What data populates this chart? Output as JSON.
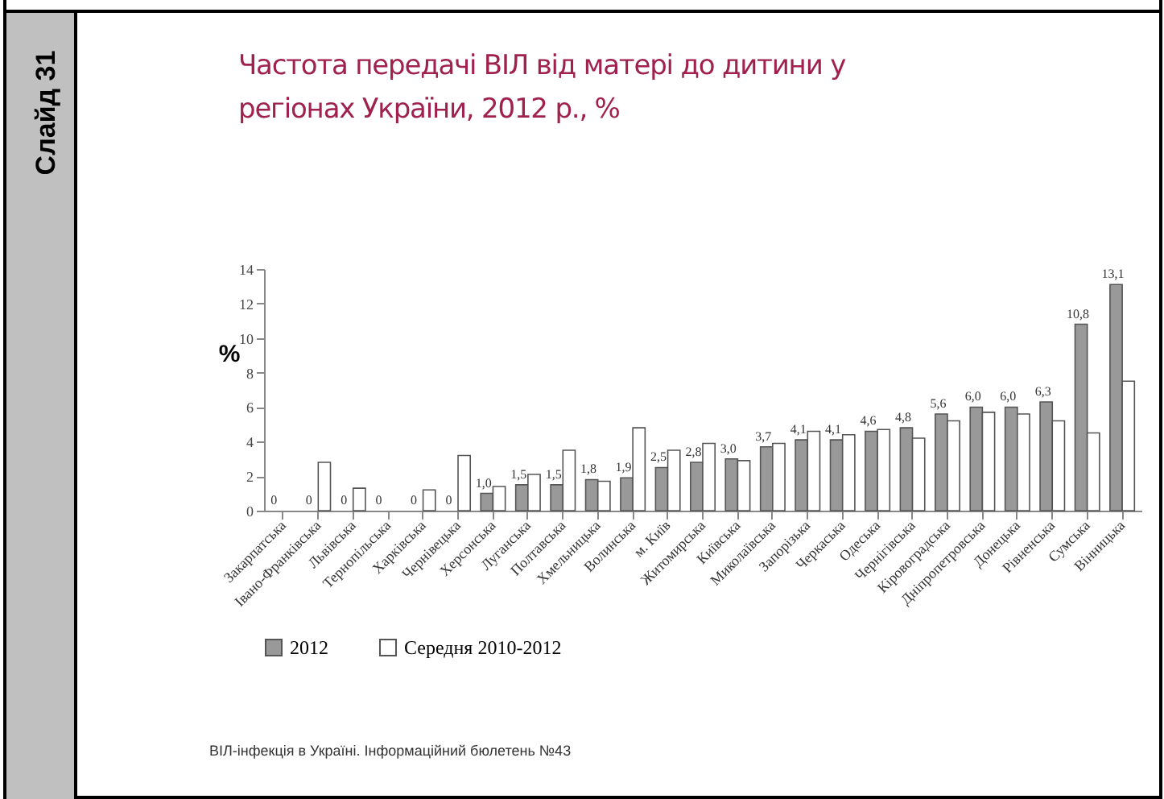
{
  "chart_data": {
    "type": "bar",
    "title": "Частота передачі ВІЛ від матері до дитини у регіонах України, 2012 р., %",
    "ylabel": "%",
    "categories": [
      "Закарпатська",
      "Івано-Франківська",
      "Львівська",
      "Тернопільська",
      "Харківська",
      "Чернівецька",
      "Херсонська",
      "Луганська",
      "Полтавська",
      "Хмельницька",
      "Волинська",
      "м. Київ",
      "Житомирська",
      "Київська",
      "Миколаївська",
      "Запорізька",
      "Черкаська",
      "Одеська",
      "Чернігівська",
      "Кіровоградська",
      "Дніпропетровська",
      "Донецька",
      "Рівненська",
      "Сумська",
      "Вінницька"
    ],
    "series": [
      {
        "name": "2012",
        "color": "#999999",
        "values": [
          0,
          0,
          0,
          0,
          0,
          0,
          1.0,
          1.5,
          1.5,
          1.8,
          1.9,
          2.5,
          2.8,
          3.0,
          3.7,
          4.1,
          4.1,
          4.6,
          4.8,
          5.6,
          6.0,
          6.0,
          6.3,
          10.8,
          13.1
        ],
        "value_labels": [
          "0",
          "0",
          "0",
          "0",
          "0",
          "0",
          "1,0",
          "1,5",
          "1,5",
          "1,8",
          "1,9",
          "2,5",
          "2,8",
          "3,0",
          "3,7",
          "4,1",
          "4,1",
          "4,6",
          "4,8",
          "5,6",
          "6,0",
          "6,0",
          "6,3",
          "10,8",
          "13,1"
        ]
      },
      {
        "name": "Середня 2010-2012",
        "color": "#ffffff",
        "values": [
          0,
          2.8,
          1.3,
          0,
          1.2,
          3.2,
          1.4,
          2.1,
          3.5,
          1.7,
          4.8,
          3.5,
          3.9,
          2.9,
          3.9,
          4.6,
          4.4,
          4.7,
          4.2,
          5.2,
          5.7,
          5.6,
          5.2,
          4.5,
          7.5
        ]
      }
    ],
    "ylim": [
      0,
      14
    ],
    "yticks": [
      0,
      2,
      4,
      6,
      8,
      10,
      12,
      14
    ],
    "grid": false,
    "legend": "bottom",
    "annotations": [
      "Слайд 31",
      "ВІЛ-інфекція в Україні. Інформаційний бюлетень №43"
    ]
  }
}
